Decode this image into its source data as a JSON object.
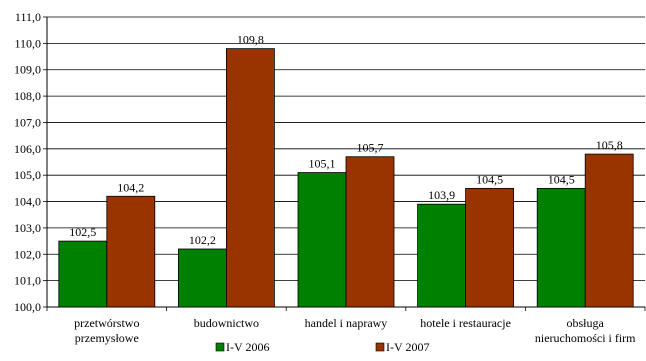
{
  "chart_data": {
    "type": "bar",
    "title": "",
    "xlabel": "",
    "ylabel": "",
    "ylim": [
      100,
      111
    ],
    "ytick_step": 1,
    "ytick_labels": [
      "100,0",
      "101,0",
      "102,0",
      "103,0",
      "104,0",
      "105,0",
      "106,0",
      "107,0",
      "108,0",
      "109,0",
      "110,0",
      "111,0"
    ],
    "grid": true,
    "legend_position": "bottom",
    "categories": [
      [
        "przetwórstwo",
        "przemysłowe"
      ],
      [
        "budownictwo"
      ],
      [
        "handel i naprawy"
      ],
      [
        "hotele i restauracje"
      ],
      [
        "obsługa",
        "nieruchomości i firm"
      ]
    ],
    "series": [
      {
        "name": "I-V 2006",
        "color": "#008000",
        "values": [
          102.5,
          102.2,
          105.1,
          103.9,
          104.5
        ],
        "labels": [
          "102,5",
          "102,2",
          "105,1",
          "103,9",
          "104,5"
        ]
      },
      {
        "name": "I-V 2007",
        "color": "#993300",
        "values": [
          104.2,
          109.8,
          105.7,
          104.5,
          105.8
        ],
        "labels": [
          "104,2",
          "109,8",
          "105,7",
          "104,5",
          "105,8"
        ]
      }
    ]
  }
}
